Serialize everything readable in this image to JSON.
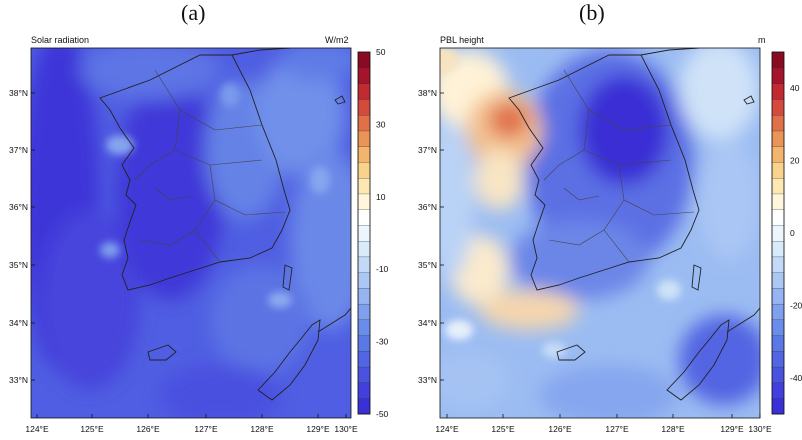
{
  "panels": [
    {
      "label": "(a)",
      "title": "Solar radiation",
      "units": "W/m2",
      "lat_labels": [
        "38°N",
        "37°N",
        "36°N",
        "35°N",
        "34°N",
        "33°N"
      ],
      "lon_labels": [
        "124°E",
        "125°E",
        "126°E",
        "127°E",
        "128°E",
        "129°E",
        "130°E"
      ],
      "colorbar_ticks": [
        "50",
        "30",
        "10",
        "-10",
        "-30",
        "-50"
      ],
      "colorbar_range": [
        -50,
        50
      ],
      "colormap": [
        "#3b2fd6",
        "#4140dc",
        "#4a53e0",
        "#5266e3",
        "#5b79e6",
        "#6a8cea",
        "#7fa0ee",
        "#95b4f1",
        "#abc7f4",
        "#c2d9f7",
        "#d9eafa",
        "#eef6fd",
        "#ffffff",
        "#fff6dc",
        "#fde8b4",
        "#f9d28b",
        "#f3b56e",
        "#ea9458",
        "#e07048",
        "#d44a3c",
        "#c22a31",
        "#a5142a",
        "#8a0a24"
      ]
    },
    {
      "label": "(b)",
      "title": "PBL height",
      "units": "m",
      "lat_labels": [
        "38°N",
        "37°N",
        "36°N",
        "35°N",
        "34°N",
        "33°N"
      ],
      "lon_labels": [
        "124°E",
        "125°E",
        "126°E",
        "127°E",
        "128°E",
        "129°E",
        "130°E"
      ],
      "colorbar_ticks": [
        "40",
        "20",
        "0",
        "-20",
        "-40"
      ],
      "colorbar_range": [
        -50,
        50
      ],
      "colormap": [
        "#3b2fd6",
        "#4140dc",
        "#4a53e0",
        "#5266e3",
        "#5b79e6",
        "#6a8cea",
        "#7fa0ee",
        "#95b4f1",
        "#abc7f4",
        "#c2d9f7",
        "#d9eafa",
        "#eef6fd",
        "#ffffff",
        "#fff6dc",
        "#fde8b4",
        "#f9d28b",
        "#f3b56e",
        "#ea9458",
        "#e07048",
        "#d44a3c",
        "#c22a31",
        "#a5142a",
        "#8a0a24"
      ]
    }
  ]
}
